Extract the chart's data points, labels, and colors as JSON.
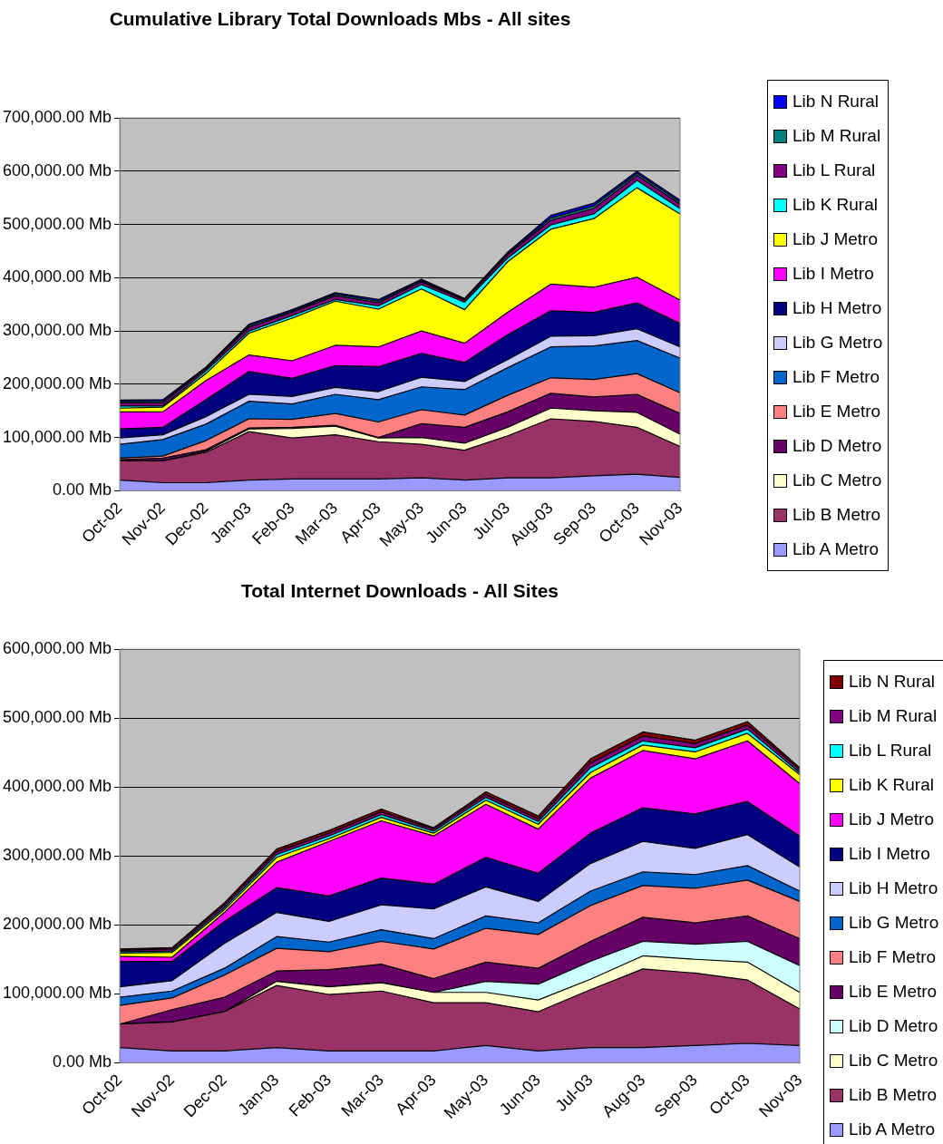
{
  "chart_data": [
    {
      "type": "area",
      "stacked": true,
      "title": "Cumulative Library Total Downloads Mbs - All sites",
      "categories": [
        "Oct-02",
        "Nov-02",
        "Dec-02",
        "Jan-03",
        "Feb-03",
        "Mar-03",
        "Apr-03",
        "May-03",
        "Jun-03",
        "Jul-03",
        "Aug-03",
        "Sep-03",
        "Oct-03",
        "Nov-03"
      ],
      "series": [
        {
          "name": "Lib A Metro",
          "color": "#9999ff",
          "values": [
            20000,
            15000,
            15000,
            20000,
            22000,
            22000,
            22000,
            24000,
            20000,
            24000,
            24000,
            28000,
            31000,
            25000
          ]
        },
        {
          "name": "Lib B Metro",
          "color": "#993366",
          "values": [
            36000,
            41000,
            57000,
            91000,
            77000,
            83000,
            70000,
            63000,
            56000,
            79000,
            111000,
            102000,
            88000,
            58000
          ]
        },
        {
          "name": "Lib C Metro",
          "color": "#ffffcc",
          "values": [
            0,
            0,
            2000,
            5000,
            18000,
            16000,
            7000,
            13000,
            13000,
            16000,
            20000,
            20000,
            28000,
            23000
          ]
        },
        {
          "name": "Lib D Metro",
          "color": "#660066",
          "values": [
            2000,
            5000,
            3000,
            2000,
            2000,
            2000,
            1000,
            26000,
            30000,
            29000,
            28000,
            26000,
            34000,
            39000
          ]
        },
        {
          "name": "Lib E Metro",
          "color": "#ff8080",
          "values": [
            3000,
            4000,
            17000,
            17000,
            15000,
            22000,
            29000,
            26000,
            23000,
            31000,
            29000,
            33000,
            39000,
            39000
          ]
        },
        {
          "name": "Lib F Metro",
          "color": "#0066cc",
          "values": [
            26000,
            31000,
            31000,
            33000,
            29000,
            36000,
            42000,
            43000,
            48000,
            52000,
            58000,
            63000,
            62000,
            65000
          ]
        },
        {
          "name": "Lib G Metro",
          "color": "#ccccff",
          "values": [
            12000,
            9000,
            14000,
            13000,
            14000,
            13000,
            15000,
            18000,
            15000,
            15000,
            20000,
            19000,
            22000,
            21000
          ]
        },
        {
          "name": "Lib H Metro",
          "color": "#000080",
          "values": [
            17000,
            14000,
            32000,
            43000,
            34000,
            41000,
            47000,
            45000,
            36000,
            47000,
            48000,
            44000,
            49000,
            44000
          ]
        },
        {
          "name": "Lib I Metro",
          "color": "#ff00ff",
          "values": [
            32000,
            29000,
            36000,
            31000,
            33000,
            38000,
            37000,
            42000,
            36000,
            42000,
            50000,
            47000,
            48000,
            44000
          ]
        },
        {
          "name": "Lib J Metro",
          "color": "#ffff00",
          "values": [
            7000,
            9000,
            13000,
            41000,
            80000,
            83000,
            71000,
            79000,
            63000,
            95000,
            103000,
            129000,
            168000,
            162000
          ]
        },
        {
          "name": "Lib K Rural",
          "color": "#00ffff",
          "values": [
            4000,
            2000,
            5000,
            4000,
            5000,
            3000,
            6000,
            8000,
            14000,
            7000,
            8000,
            9000,
            14000,
            10000
          ]
        },
        {
          "name": "Lib L Rural",
          "color": "#800080",
          "values": [
            6000,
            6000,
            4000,
            7000,
            6000,
            7000,
            6000,
            5000,
            4000,
            6000,
            9000,
            10000,
            9000,
            8000
          ]
        },
        {
          "name": "Lib M Rural",
          "color": "#008080",
          "values": [
            2000,
            3000,
            1000,
            3000,
            2000,
            3000,
            3000,
            2000,
            1000,
            2000,
            4000,
            5000,
            4000,
            4000
          ]
        },
        {
          "name": "Lib N Rural",
          "color": "#0000ff",
          "values": [
            3000,
            3000,
            2000,
            3000,
            3000,
            3000,
            3000,
            3000,
            2000,
            3000,
            5000,
            5000,
            4000,
            4000
          ]
        }
      ],
      "ylim": [
        0,
        700000
      ],
      "yticks": [
        {
          "value": 0,
          "label": "0.00 Mb"
        },
        {
          "value": 100000,
          "label": "100,000.00 Mb"
        },
        {
          "value": 200000,
          "label": "200,000.00 Mb"
        },
        {
          "value": 300000,
          "label": "300,000.00 Mb"
        },
        {
          "value": 400000,
          "label": "400,000.00 Mb"
        },
        {
          "value": 500000,
          "label": "500,000.00 Mb"
        },
        {
          "value": 600000,
          "label": "600,000.00 Mb"
        },
        {
          "value": 700000,
          "label": "700,000.00 Mb"
        }
      ],
      "grid": "y",
      "legend": "right"
    },
    {
      "type": "area",
      "stacked": true,
      "title": "Total Internet Downloads - All Sites",
      "categories": [
        "Oct-02",
        "Nov-02",
        "Dec-02",
        "Jan-03",
        "Feb-03",
        "Mar-03",
        "Apr-03",
        "May-03",
        "Jun-03",
        "Jul-03",
        "Aug-03",
        "Sep-03",
        "Oct-03",
        "Nov-03"
      ],
      "series": [
        {
          "name": "Lib A Metro",
          "color": "#9999ff",
          "values": [
            22000,
            17000,
            17000,
            22000,
            17000,
            17000,
            17000,
            25000,
            17000,
            22000,
            22000,
            25000,
            28000,
            25000
          ]
        },
        {
          "name": "Lib B Metro",
          "color": "#993366",
          "values": [
            34000,
            42000,
            57000,
            90000,
            82000,
            87000,
            70000,
            62000,
            57000,
            84000,
            114000,
            105000,
            92000,
            53000
          ]
        },
        {
          "name": "Lib C Metro",
          "color": "#ffffcc",
          "values": [
            0,
            0,
            0,
            6000,
            11000,
            12000,
            15000,
            15000,
            17000,
            15000,
            19000,
            20000,
            26000,
            24000
          ]
        },
        {
          "name": "Lib D Metro",
          "color": "#ccffff",
          "values": [
            0,
            0,
            0,
            0,
            0,
            0,
            0,
            16000,
            23000,
            26000,
            21000,
            22000,
            30000,
            39000
          ]
        },
        {
          "name": "Lib E Metro",
          "color": "#660066",
          "values": [
            0,
            18000,
            21000,
            15000,
            25000,
            27000,
            20000,
            28000,
            23000,
            29000,
            35000,
            31000,
            37000,
            39000
          ]
        },
        {
          "name": "Lib F Metro",
          "color": "#ff8080",
          "values": [
            27000,
            17000,
            32000,
            33000,
            26000,
            33000,
            43000,
            49000,
            49000,
            52000,
            46000,
            50000,
            52000,
            54000
          ]
        },
        {
          "name": "Lib G Metro",
          "color": "#0066cc",
          "values": [
            12000,
            10000,
            10000,
            17000,
            14000,
            17000,
            15000,
            18000,
            17000,
            21000,
            20000,
            20000,
            21000,
            15000
          ]
        },
        {
          "name": "Lib H Metro",
          "color": "#ccccff",
          "values": [
            15000,
            15000,
            36000,
            35000,
            30000,
            36000,
            43000,
            42000,
            31000,
            40000,
            44000,
            38000,
            45000,
            35000
          ]
        },
        {
          "name": "Lib I Metro",
          "color": "#000080",
          "values": [
            37000,
            28000,
            32000,
            36000,
            37000,
            39000,
            36000,
            43000,
            41000,
            44000,
            49000,
            50000,
            48000,
            45000
          ]
        },
        {
          "name": "Lib J Metro",
          "color": "#ff00ff",
          "values": [
            7000,
            6000,
            13000,
            37000,
            79000,
            83000,
            70000,
            77000,
            64000,
            80000,
            83000,
            80000,
            88000,
            76000
          ]
        },
        {
          "name": "Lib K Rural",
          "color": "#ffff00",
          "values": [
            5000,
            7000,
            4000,
            7000,
            4000,
            5000,
            4000,
            6000,
            7000,
            8000,
            8000,
            10000,
            11000,
            13000
          ]
        },
        {
          "name": "Lib L Rural",
          "color": "#00ffff",
          "values": [
            2000,
            2000,
            3000,
            4000,
            4000,
            4000,
            3000,
            4000,
            4000,
            7000,
            6000,
            6000,
            6000,
            3000
          ]
        },
        {
          "name": "Lib M Rural",
          "color": "#800080",
          "values": [
            2000,
            3000,
            4000,
            4000,
            4000,
            4000,
            3000,
            4000,
            4000,
            7000,
            7000,
            6000,
            6000,
            4000
          ]
        },
        {
          "name": "Lib N Rural",
          "color": "#800000",
          "values": [
            2000,
            2000,
            3000,
            4000,
            4000,
            4000,
            2000,
            4000,
            4000,
            6000,
            6000,
            5000,
            5000,
            3000
          ]
        }
      ],
      "ylim": [
        0,
        600000
      ],
      "yticks": [
        {
          "value": 0,
          "label": "0.00 Mb"
        },
        {
          "value": 100000,
          "label": "100,000.00 Mb"
        },
        {
          "value": 200000,
          "label": "200,000.00 Mb"
        },
        {
          "value": 300000,
          "label": "300,000.00 Mb"
        },
        {
          "value": 400000,
          "label": "400,000.00 Mb"
        },
        {
          "value": 500000,
          "label": "500,000.00 Mb"
        },
        {
          "value": 600000,
          "label": "600,000.00 Mb"
        }
      ],
      "grid": "y",
      "legend": "right"
    }
  ]
}
